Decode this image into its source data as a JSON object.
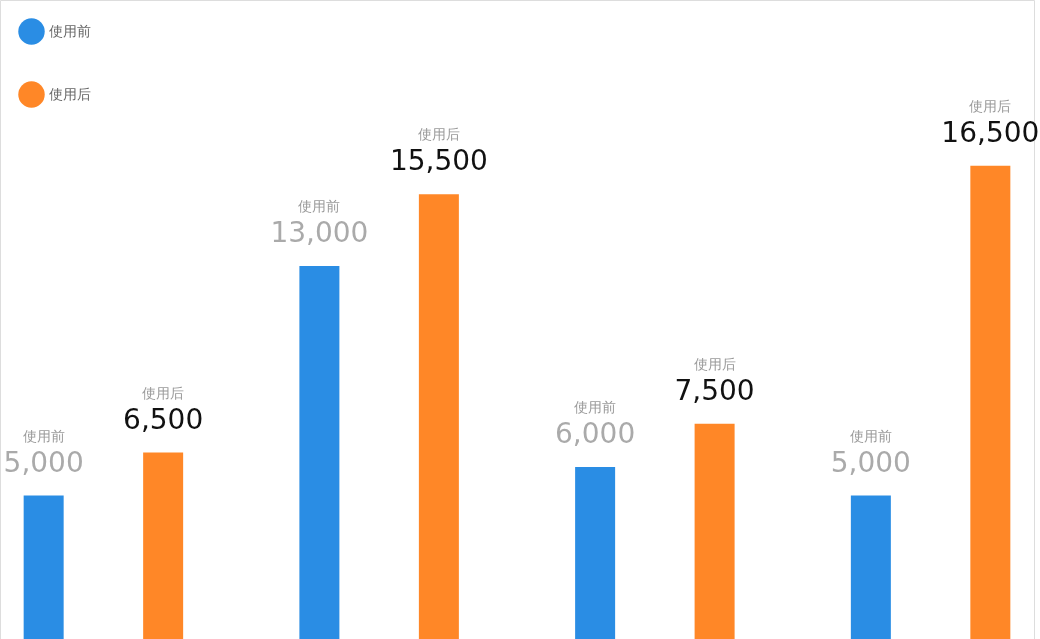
{
  "chart_data": {
    "type": "bar",
    "categories": [
      null,
      null,
      null,
      null
    ],
    "legend": "top left",
    "series": [
      {
        "name": "使用前",
        "color": "#2a8de4",
        "values": [
          5000,
          13000,
          6000,
          5000
        ],
        "value_labels": [
          "5,000",
          "13,000",
          "6,000",
          "5,000"
        ]
      },
      {
        "name": "使用后",
        "color": "#ff8727",
        "values": [
          6500,
          15500,
          7500,
          16500
        ],
        "value_labels": [
          "6,500",
          "15,500",
          "7,500",
          "16,500"
        ]
      }
    ]
  }
}
